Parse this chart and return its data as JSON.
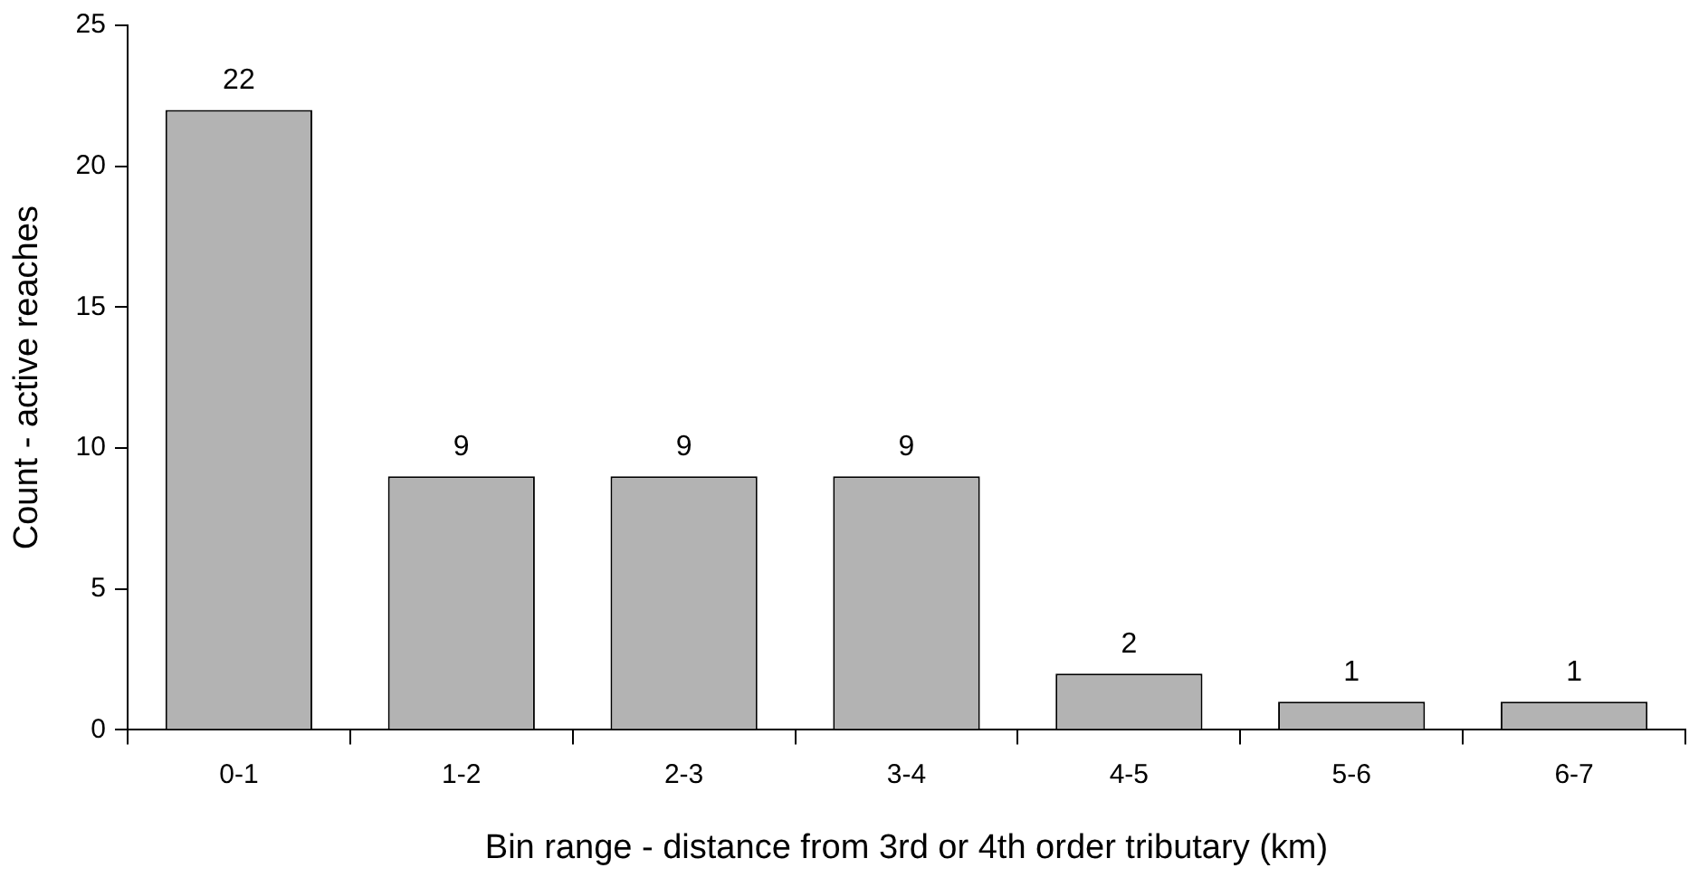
{
  "chart_data": {
    "type": "bar",
    "xlabel": "Bin range - distance from 3rd or 4th order tributary (km)",
    "ylabel": "Count - active reaches",
    "categories": [
      "0-1",
      "1-2",
      "2-3",
      "3-4",
      "4-5",
      "5-6",
      "6-7"
    ],
    "values": [
      22,
      9,
      9,
      9,
      2,
      1,
      1
    ],
    "color": "#b3b3b3",
    "ylim": [
      0,
      25
    ],
    "yticks": [
      0,
      5,
      10,
      15,
      20,
      25
    ],
    "grid": false,
    "legend": false,
    "data_labels": true
  }
}
